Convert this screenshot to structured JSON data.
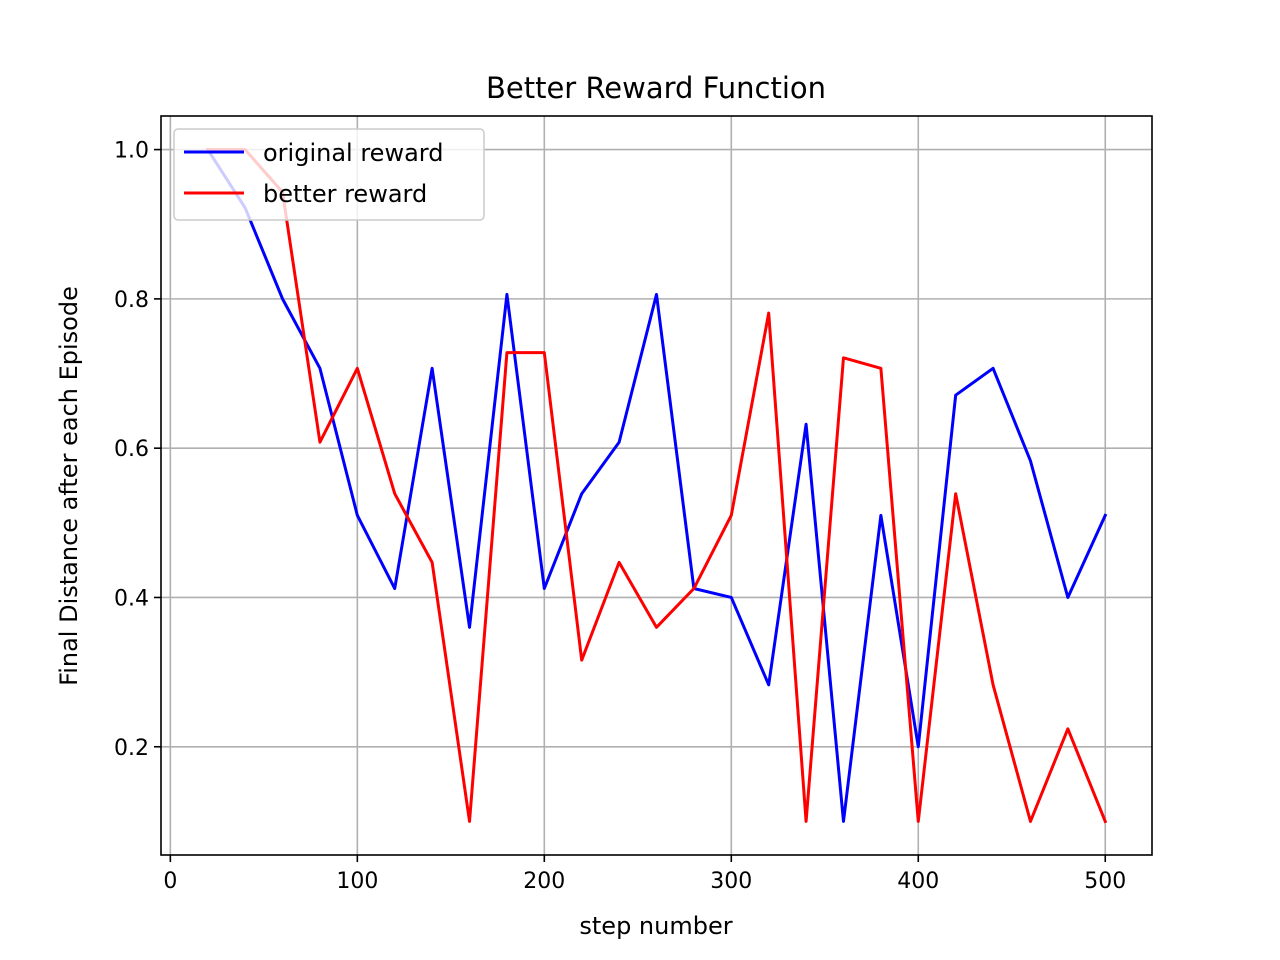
{
  "chart_data": {
    "type": "line",
    "title": "Better Reward Function",
    "xlabel": "step number",
    "ylabel": "Final Distance after each Episode",
    "xlim": [
      -5,
      525
    ],
    "ylim": [
      0.055,
      1.045
    ],
    "xticks": [
      0,
      100,
      200,
      300,
      400,
      500
    ],
    "yticks": [
      0.2,
      0.4,
      0.6,
      0.8,
      1.0
    ],
    "xtick_labels": [
      "0",
      "100",
      "200",
      "300",
      "400",
      "500"
    ],
    "ytick_labels": [
      "0.2",
      "0.4",
      "0.6",
      "0.8",
      "1.0"
    ],
    "grid": true,
    "legend_position": "upper-left",
    "x": [
      20,
      40,
      60,
      80,
      100,
      120,
      140,
      160,
      180,
      200,
      220,
      240,
      260,
      280,
      300,
      320,
      340,
      360,
      380,
      400,
      420,
      440,
      460,
      480,
      500
    ],
    "series": [
      {
        "name": "original reward",
        "color": "#0000ff",
        "values": [
          1.0,
          0.922,
          0.8,
          0.707,
          0.51,
          0.412,
          0.707,
          0.36,
          0.806,
          0.412,
          0.539,
          0.608,
          0.806,
          0.412,
          0.4,
          0.283,
          0.632,
          0.1,
          0.51,
          0.2,
          0.671,
          0.707,
          0.583,
          0.4,
          0.51
        ]
      },
      {
        "name": "better reward",
        "color": "#ff0000",
        "values": [
          1.0,
          1.0,
          0.943,
          0.608,
          0.707,
          0.539,
          0.447,
          0.1,
          0.728,
          0.728,
          0.316,
          0.447,
          0.36,
          0.412,
          0.51,
          0.781,
          0.1,
          0.721,
          0.707,
          0.1,
          0.539,
          0.283,
          0.1,
          0.224,
          0.1
        ]
      }
    ]
  }
}
